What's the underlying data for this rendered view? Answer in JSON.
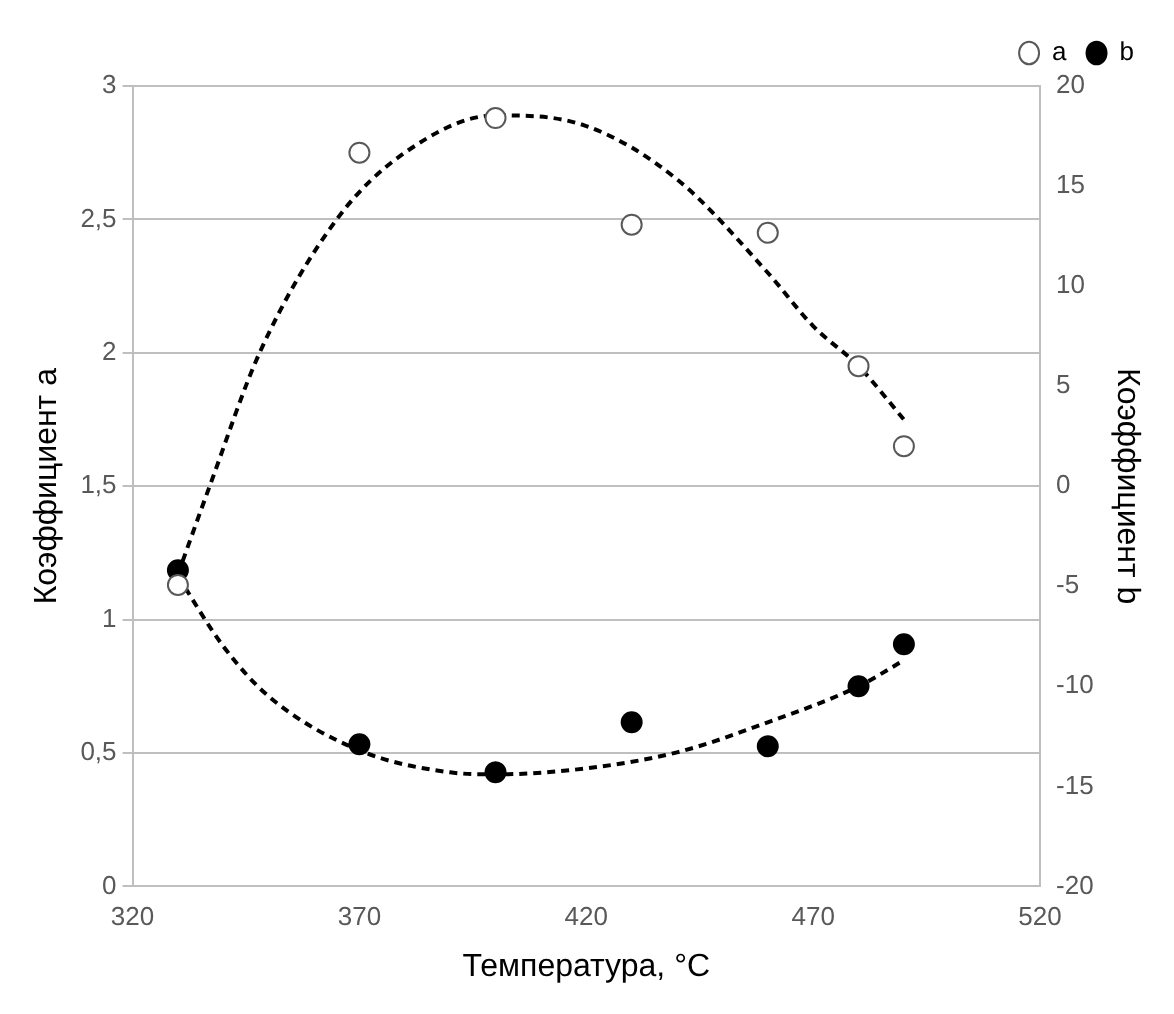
{
  "chart_data": {
    "type": "scatter",
    "xlabel": "Температура, °C",
    "ylabel": "Коэффициент a",
    "y2label": "Коэффициент b",
    "xlim": [
      320,
      520
    ],
    "xticks": [
      320,
      370,
      420,
      470,
      520
    ],
    "ylim": [
      0,
      3
    ],
    "yticks": [
      0,
      {
        "value": 0.5,
        "label": "0,5"
      },
      1,
      {
        "value": 1.5,
        "label": "1,5"
      },
      2,
      {
        "value": 2.5,
        "label": "2,5"
      },
      3
    ],
    "y2lim": [
      -20,
      20
    ],
    "y2ticks": [
      -20,
      -15,
      -10,
      -5,
      0,
      5,
      10,
      15,
      20
    ],
    "grid": "y",
    "legend": "top right",
    "series": [
      {
        "name": "a",
        "marker": "circle",
        "color": "#ffffff",
        "x": [
          330,
          370,
          400,
          430,
          460,
          480,
          490
        ],
        "values": [
          1.13,
          2.75,
          2.88,
          2.48,
          2.45,
          1.95,
          1.65
        ]
      },
      {
        "name": "b",
        "marker": "circle",
        "axis": "y2",
        "color": "#000000",
        "x": [
          330,
          370,
          400,
          430,
          460,
          480,
          490
        ],
        "values": [
          -4.2,
          -12.9,
          -14.3,
          -11.8,
          -13,
          -10,
          -7.9
        ]
      },
      {
        "type": "line",
        "marker": "none",
        "line_style": "dashed",
        "color": "#000000",
        "x": [
          330,
          337,
          348,
          365,
          380,
          400,
          420,
          440,
          460,
          470,
          480,
          490
        ],
        "values": [
          1.17,
          1.5,
          2,
          2.5,
          2.75,
          2.89,
          2.85,
          2.65,
          2.3,
          2.1,
          1.95,
          1.75
        ]
      },
      {
        "type": "line",
        "marker": "none",
        "line_style": "dashed",
        "axis": "y2",
        "color": "#000000",
        "x": [
          330,
          340,
          350,
          370,
          390,
          400,
          420,
          440,
          460,
          480,
          490
        ],
        "values": [
          -4.5,
          -8,
          -10.5,
          -13.2,
          -14.3,
          -14.4,
          -14.1,
          -13.3,
          -11.8,
          -10,
          -8.7
        ]
      }
    ]
  }
}
